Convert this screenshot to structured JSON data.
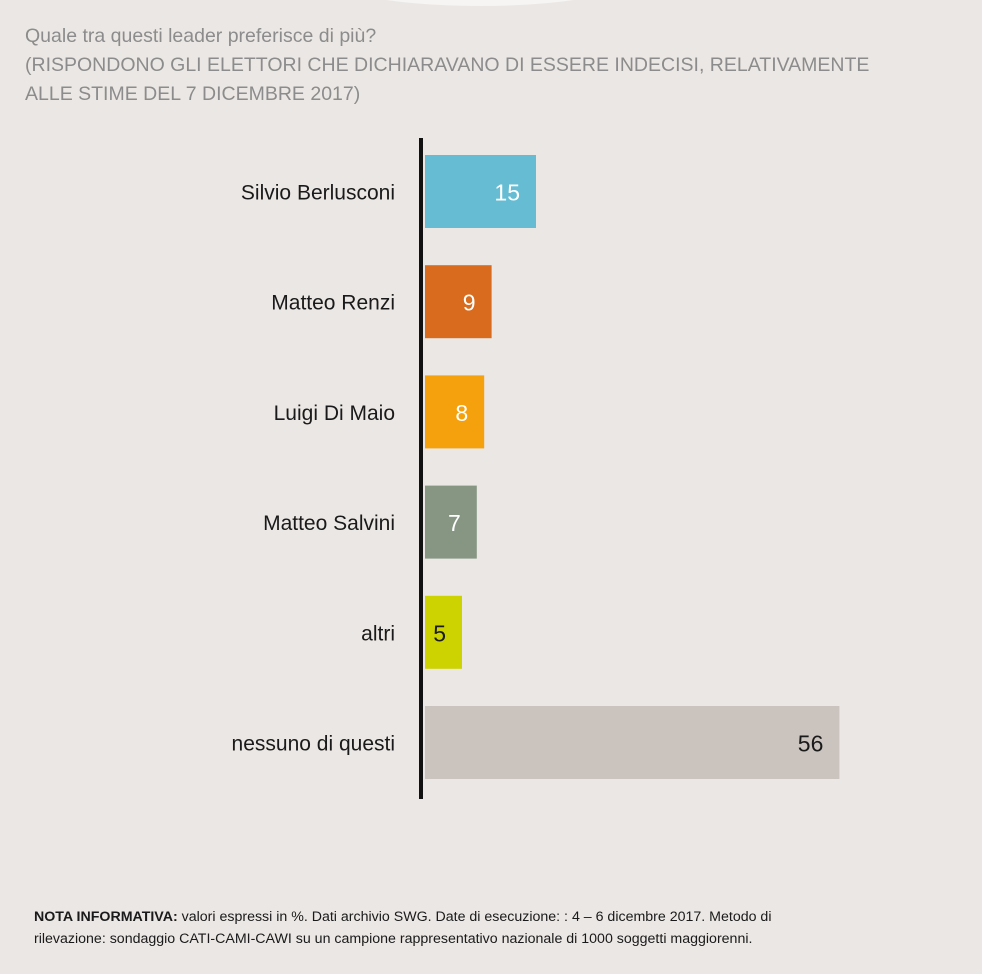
{
  "title": {
    "line1": "Quale tra questi leader preferisce di più?",
    "line2": "(RISPONDONO GLI ELETTORI CHE DICHIARAVANO DI ESSERE INDECISI, RELATIVAMENTE",
    "line3": "ALLE STIME DEL 7 DICEMBRE 2017)"
  },
  "chart_data": {
    "type": "bar",
    "orientation": "horizontal",
    "categories": [
      "Silvio Berlusconi",
      "Matteo Renzi",
      "Luigi Di Maio",
      "Matteo Salvini",
      "altri",
      "nessuno di questi"
    ],
    "values": [
      15,
      9,
      8,
      7,
      5,
      56
    ],
    "colors": [
      "#66bdd3",
      "#d86b1d",
      "#f5a10e",
      "#869683",
      "#cdd300",
      "#cbc3bd"
    ],
    "label_colors": [
      "#ffffff",
      "#ffffff",
      "#ffffff",
      "#ffffff",
      "#1a1a1a",
      "#1a1a1a"
    ],
    "xlim": [
      0,
      100
    ],
    "grid": false,
    "legend": "none"
  },
  "footnote": {
    "label": "NOTA INFORMATIVA:",
    "text1": " valori espressi in %. Dati archivio SWG. Date di esecuzione: : 4 – 6 dicembre 2017. Metodo di",
    "text2": "rilevazione: sondaggio CATI-CAMI-CAWI su un campione rappresentativo nazionale di 1000 soggetti maggiorenni."
  }
}
